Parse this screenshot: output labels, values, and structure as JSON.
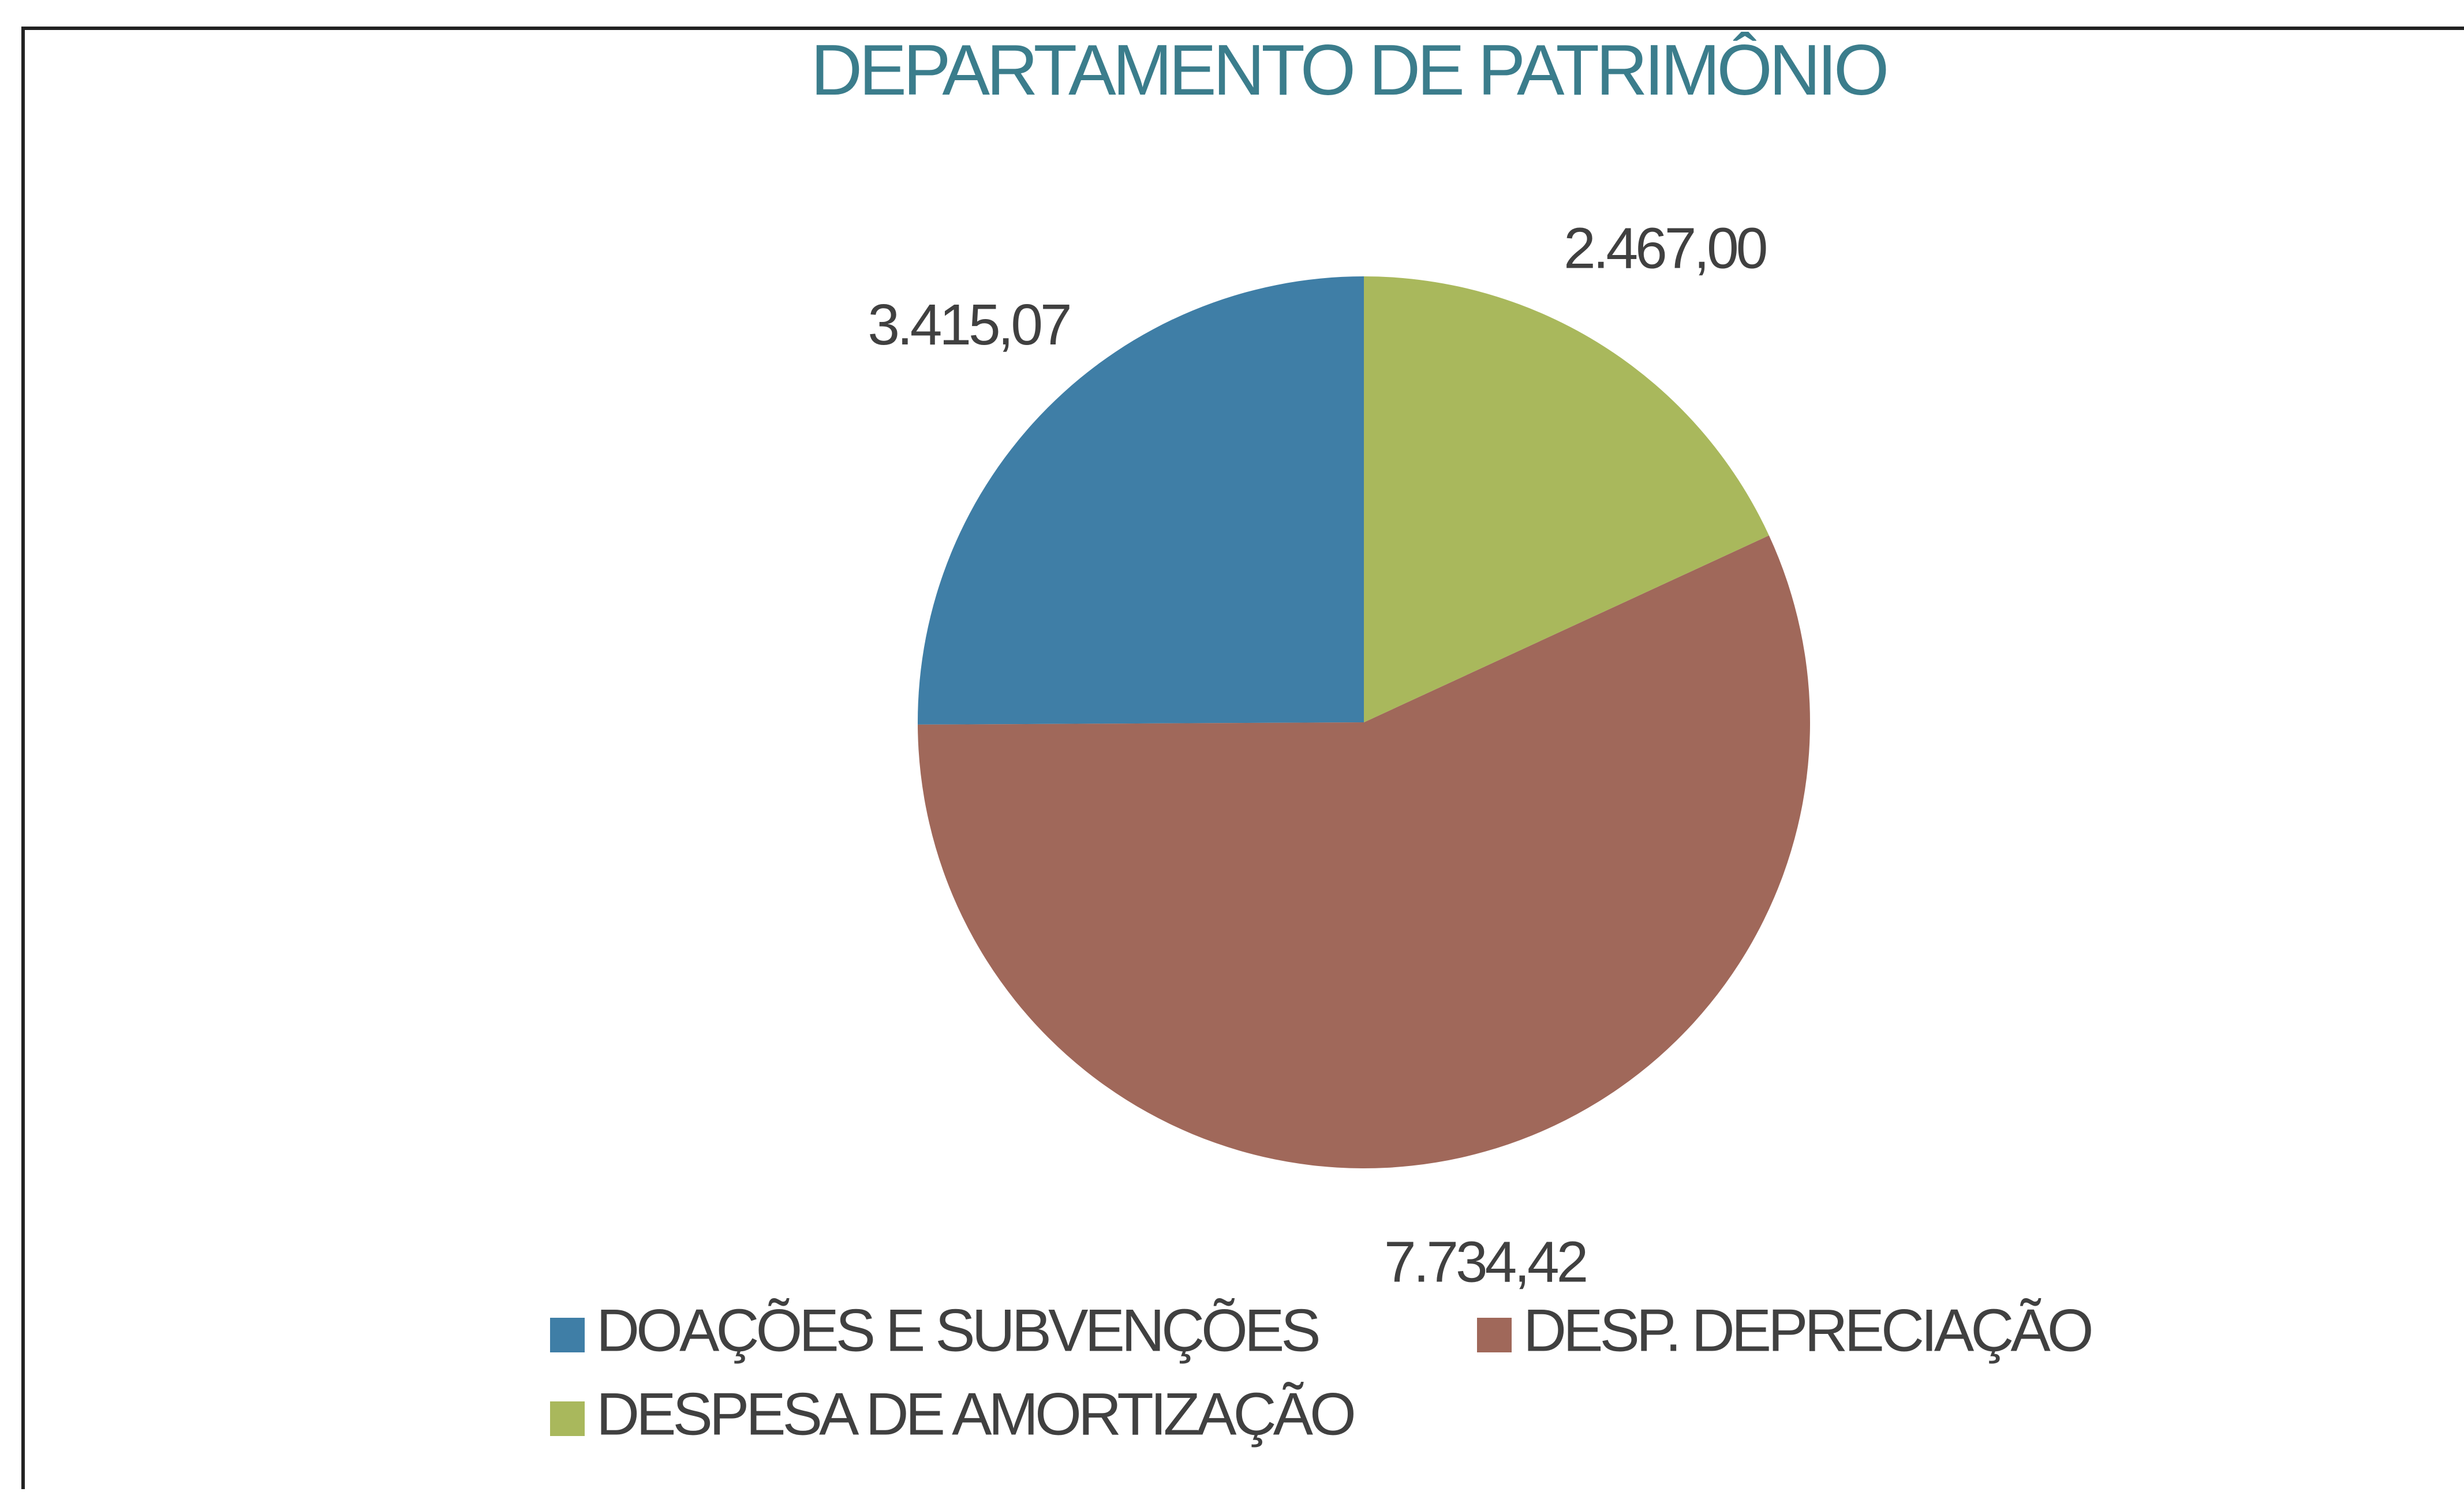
{
  "chart_data": {
    "type": "pie",
    "title": "DEPARTAMENTO DE PATRIMÔNIO",
    "categories": [
      "DOAÇÕES E SUBVENÇÕES",
      "DESP. DEPRECIAÇÃO",
      "DESPESA DE AMORTIZAÇÃO"
    ],
    "values": [
      3415.07,
      7734.42,
      2467.0
    ],
    "value_labels": [
      "3.415,07",
      "7.734,42",
      "2.467,00"
    ],
    "colors": [
      "#3f7ea6",
      "#a0685a",
      "#a9b85c"
    ],
    "legend": "bottom"
  }
}
